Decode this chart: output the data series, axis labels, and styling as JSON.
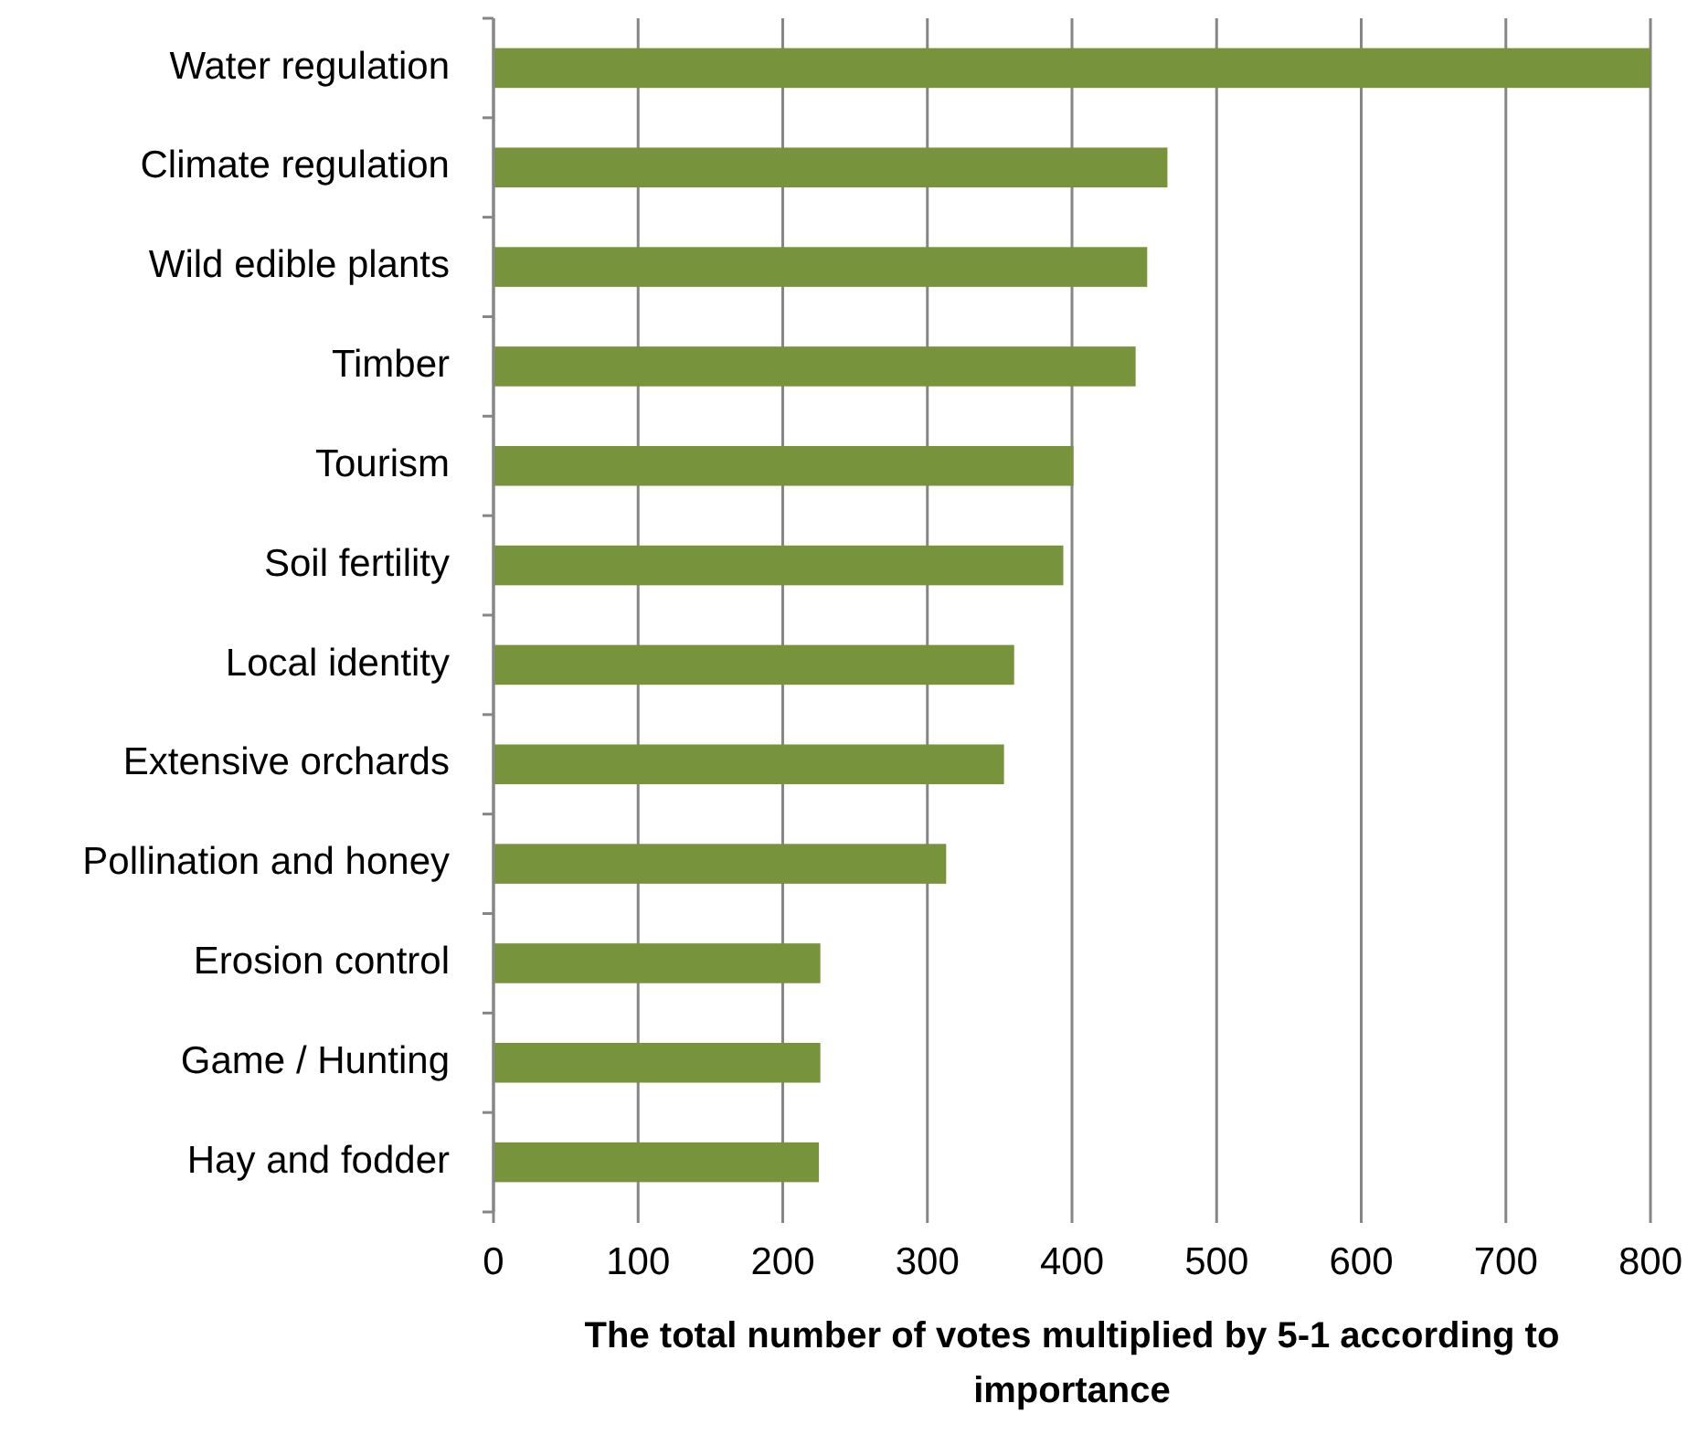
{
  "chart_data": {
    "type": "bar",
    "orientation": "horizontal",
    "categories": [
      "Water regulation",
      "Climate regulation",
      "Wild edible plants",
      "Timber",
      "Tourism",
      "Soil fertility",
      "Local identity",
      "Extensive orchards",
      "Pollination and honey",
      "Erosion control",
      "Game / Hunting",
      "Hay and fodder"
    ],
    "values": [
      800,
      466,
      452,
      444,
      401,
      394,
      360,
      353,
      313,
      226,
      226,
      225
    ],
    "color": "#77933c",
    "xlim": [
      0,
      800
    ],
    "xticks": [
      0,
      100,
      200,
      300,
      400,
      500,
      600,
      700,
      800
    ],
    "grid": "x",
    "xlabel": "The total number of votes multiplied by 5-1 according to importance"
  }
}
